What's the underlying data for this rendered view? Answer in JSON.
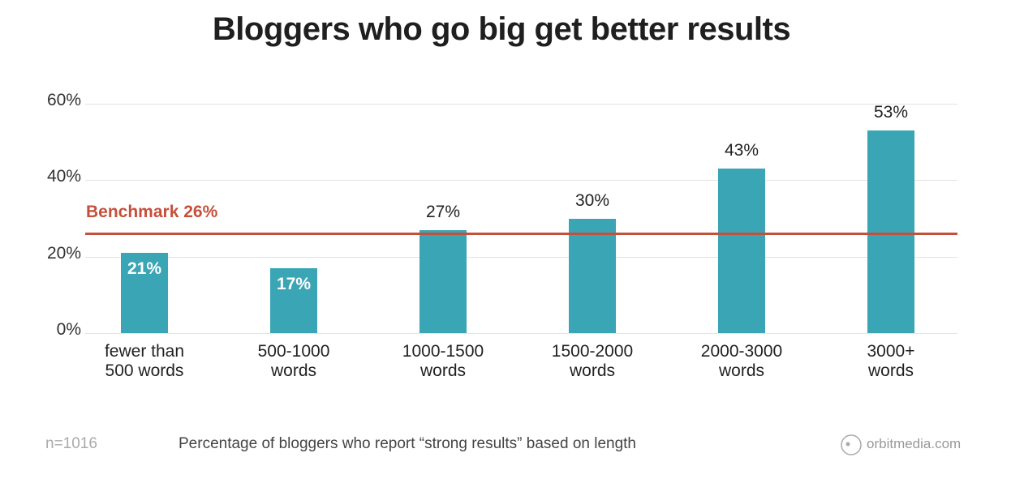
{
  "chart_data": {
    "type": "bar",
    "title": "Bloggers who go big get better results",
    "categories": [
      "fewer than\n500 words",
      "500-1000\nwords",
      "1000-1500\nwords",
      "1500-2000\nwords",
      "2000-3000\nwords",
      "3000+\nwords"
    ],
    "values": [
      21,
      17,
      27,
      30,
      43,
      53
    ],
    "value_labels": [
      "21%",
      "17%",
      "27%",
      "30%",
      "43%",
      "53%"
    ],
    "color": "#3aa5b4",
    "ylim": [
      0,
      60
    ],
    "yticks": [
      {
        "value": 0,
        "label": "0%"
      },
      {
        "value": 20,
        "label": "20%"
      },
      {
        "value": 40,
        "label": "40%"
      },
      {
        "value": 60,
        "label": "60%"
      }
    ],
    "grid": true,
    "benchmark": {
      "label": "Benchmark 26%",
      "value": 26,
      "color": "#c4503c"
    },
    "note": "n=1016",
    "caption": "Percentage of bloggers who report “strong results” based on length",
    "source": "orbitmedia.com"
  }
}
